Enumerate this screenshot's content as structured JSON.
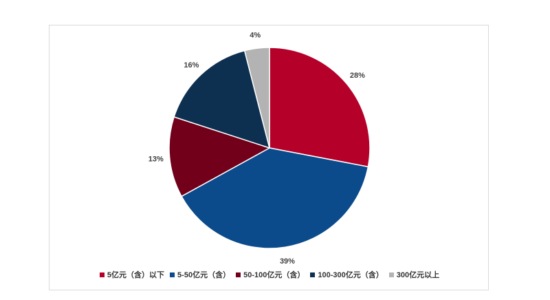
{
  "chart_data": {
    "type": "pie",
    "start_angle_deg": 0,
    "direction": "clockwise",
    "categories": [
      "5亿元（含）以下",
      "5-50亿元（含）",
      "50-100亿元（含）",
      "100-300亿元（含）",
      "300亿元以上"
    ],
    "values": [
      28,
      39,
      13,
      16,
      4
    ],
    "data_labels": [
      "28%",
      "39%",
      "13%",
      "16%",
      "4%"
    ],
    "colors": [
      "#b5002a",
      "#0b4a8b",
      "#72001a",
      "#0e3050",
      "#b3b3b3"
    ],
    "legend_position": "bottom"
  },
  "legend": [
    {
      "label": "5亿元（含）以下",
      "color": "#b5002a"
    },
    {
      "label": "5-50亿元（含）",
      "color": "#0b4a8b"
    },
    {
      "label": "50-100亿元（含）",
      "color": "#72001a"
    },
    {
      "label": "100-300亿元（含）",
      "color": "#0e3050"
    },
    {
      "label": "300亿元以上",
      "color": "#b3b3b3"
    }
  ]
}
